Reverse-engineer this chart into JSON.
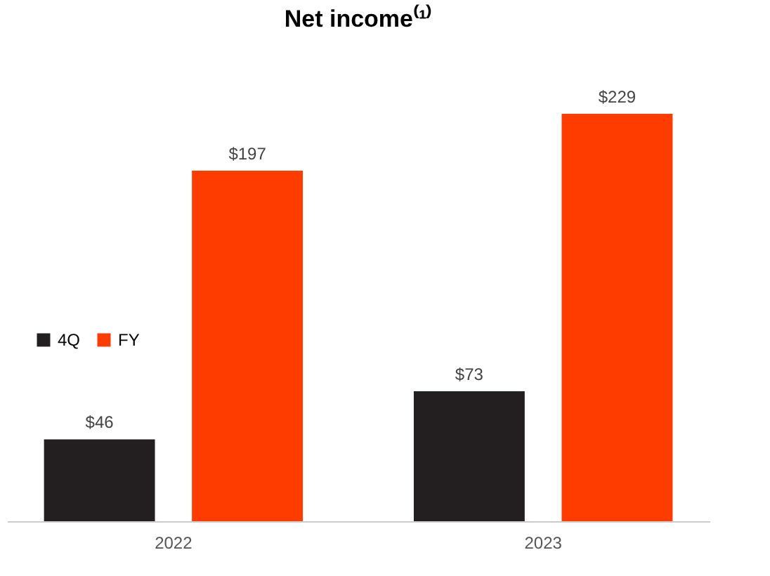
{
  "chart_data": {
    "type": "bar",
    "title": "Net income⁽¹⁾",
    "categories": [
      "2022",
      "2023"
    ],
    "series": [
      {
        "name": "4Q",
        "color": "#231f20",
        "values": [
          46,
          73
        ],
        "value_labels": [
          "$46",
          "$73"
        ]
      },
      {
        "name": "FY",
        "color": "#ff3c00",
        "values": [
          197,
          229
        ],
        "value_labels": [
          "$197",
          "$229"
        ]
      }
    ],
    "legend": "left",
    "grid": false
  }
}
